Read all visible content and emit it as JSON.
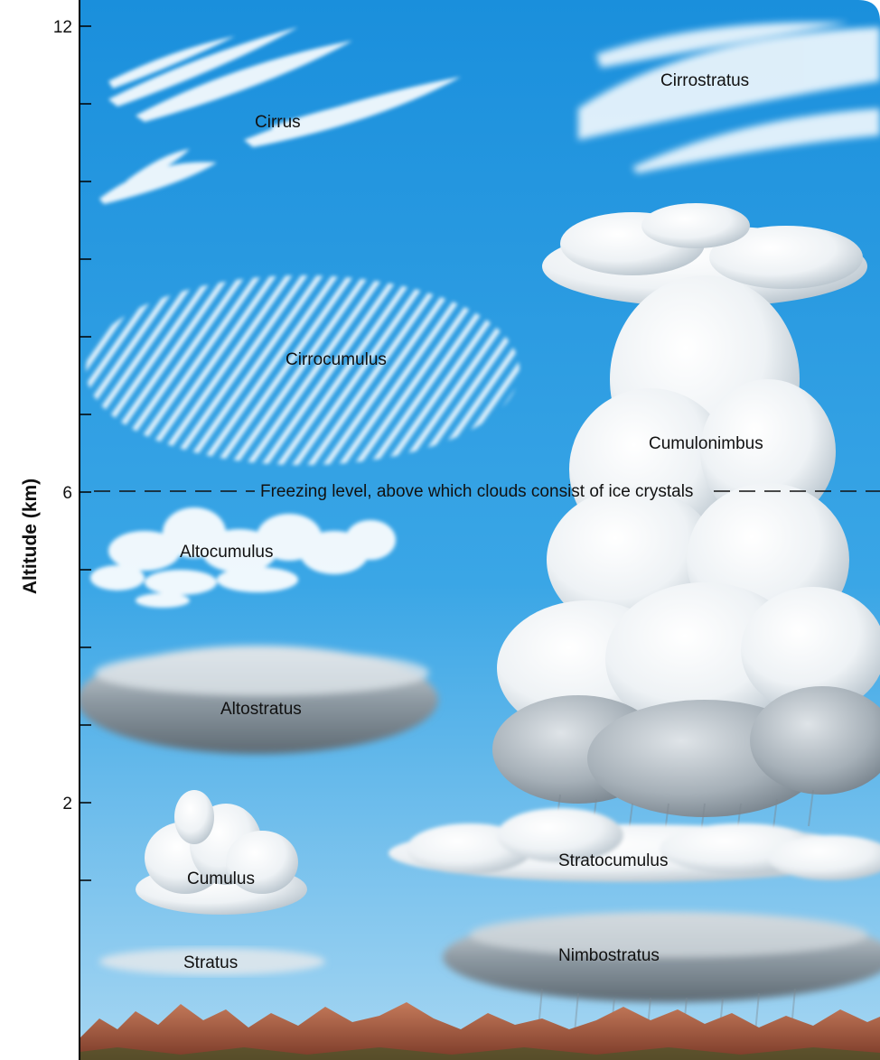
{
  "axis": {
    "title": "Altitude (km)",
    "ticks": [
      {
        "value": 12,
        "label": "12"
      },
      {
        "value": 6,
        "label": "6"
      },
      {
        "value": 2,
        "label": "2"
      }
    ]
  },
  "freezing_level": {
    "altitude": 6,
    "label": "Freezing level, above which clouds consist of ice crystals"
  },
  "clouds": {
    "cirrus": "Cirrus",
    "cirrostratus": "Cirrostratus",
    "cirrocumulus": "Cirrocumulus",
    "cumulonimbus": "Cumulonimbus",
    "altocumulus": "Altocumulus",
    "altostratus": "Altostratus",
    "cumulus": "Cumulus",
    "stratocumulus": "Stratocumulus",
    "stratus": "Stratus",
    "nimbostratus": "Nimbostratus"
  },
  "colors": {
    "sky_top": "#1a8fdc",
    "sky_bottom": "#9fd1f0",
    "cloud_white": "#ffffff",
    "cloud_gray": "#7c8a94",
    "mountain": "#a35a3e"
  }
}
